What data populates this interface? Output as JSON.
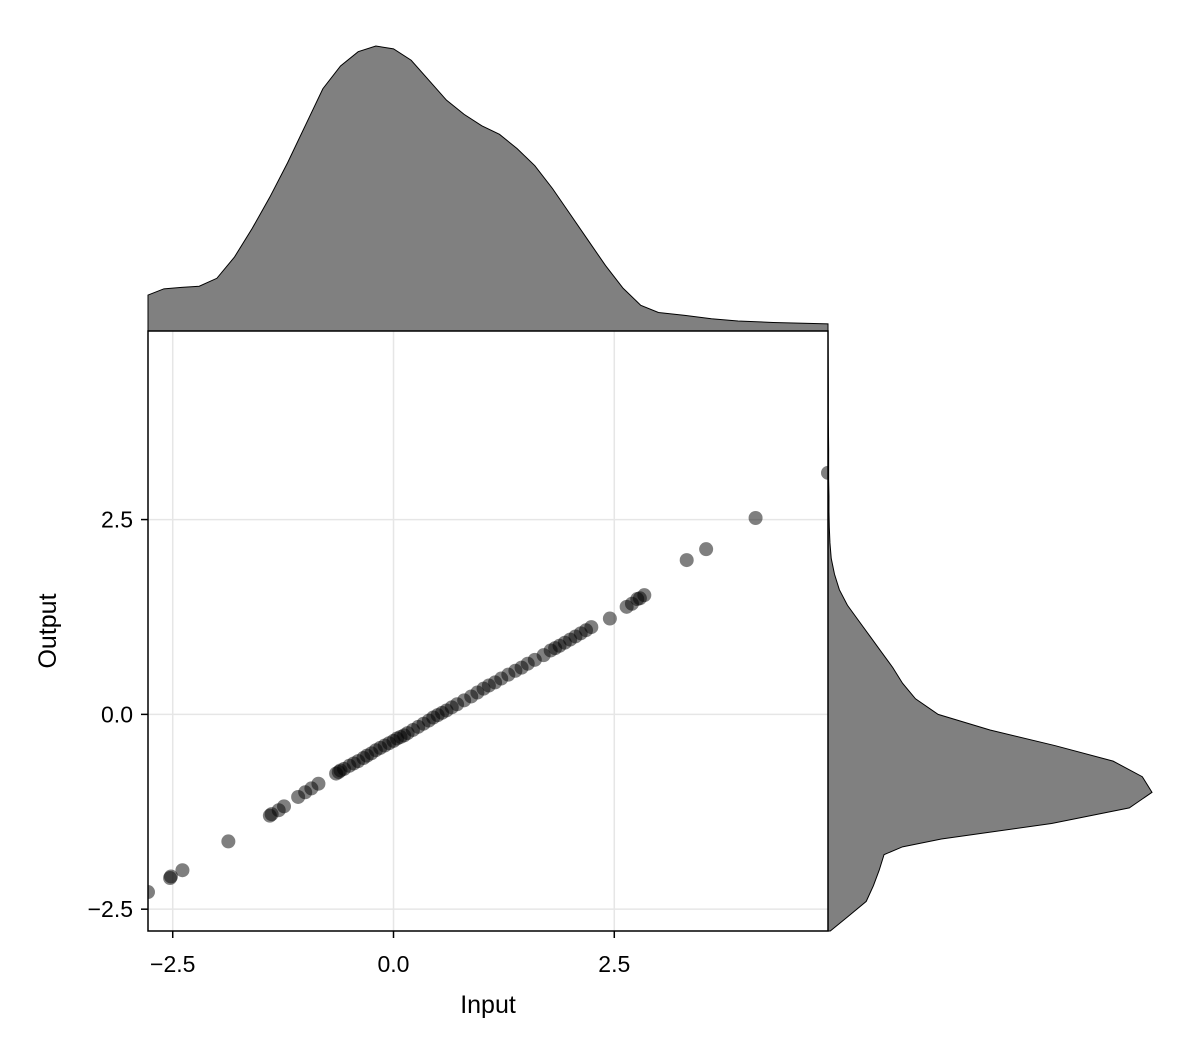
{
  "chart_data": {
    "type": "scatter",
    "title": "",
    "xlabel": "Input",
    "ylabel": "Output",
    "xlim": [
      -2.78,
      4.92
    ],
    "ylim": [
      -2.78,
      4.92
    ],
    "xticks": [
      -2.5,
      0.0,
      2.5
    ],
    "yticks": [
      -2.5,
      0.0,
      2.5
    ],
    "xtick_labels": [
      "−2.5",
      "0.0",
      "2.5"
    ],
    "ytick_labels": [
      "−2.5",
      "0.0",
      "2.5"
    ],
    "grid": true,
    "marginals": "density (top: Input, right: Output)",
    "colors": {
      "points": "#000000",
      "density_fill": "#808080",
      "frame": "#000000",
      "grid": "#e6e6e6"
    },
    "series": [
      {
        "points": [
          [
            -2.78,
            -2.28
          ],
          [
            -2.53,
            -2.1
          ],
          [
            -2.52,
            -2.08
          ],
          [
            -2.39,
            -2.0
          ],
          [
            -1.87,
            -1.63
          ],
          [
            -1.4,
            -1.3
          ],
          [
            -1.38,
            -1.28
          ],
          [
            -1.3,
            -1.23
          ],
          [
            -1.24,
            -1.18
          ],
          [
            -1.08,
            -1.06
          ],
          [
            -1.0,
            -1.0
          ],
          [
            -0.93,
            -0.95
          ],
          [
            -0.85,
            -0.89
          ],
          [
            -0.65,
            -0.76
          ],
          [
            -0.62,
            -0.74
          ],
          [
            -0.6,
            -0.72
          ],
          [
            -0.56,
            -0.7
          ],
          [
            -0.5,
            -0.66
          ],
          [
            -0.45,
            -0.63
          ],
          [
            -0.4,
            -0.6
          ],
          [
            -0.34,
            -0.56
          ],
          [
            -0.3,
            -0.53
          ],
          [
            -0.25,
            -0.5
          ],
          [
            -0.2,
            -0.46
          ],
          [
            -0.15,
            -0.43
          ],
          [
            -0.1,
            -0.4
          ],
          [
            -0.05,
            -0.37
          ],
          [
            0.0,
            -0.34
          ],
          [
            0.04,
            -0.31
          ],
          [
            0.08,
            -0.29
          ],
          [
            0.12,
            -0.27
          ],
          [
            0.16,
            -0.24
          ],
          [
            0.22,
            -0.2
          ],
          [
            0.28,
            -0.16
          ],
          [
            0.34,
            -0.12
          ],
          [
            0.4,
            -0.08
          ],
          [
            0.45,
            -0.04
          ],
          [
            0.5,
            -0.01
          ],
          [
            0.55,
            0.02
          ],
          [
            0.6,
            0.05
          ],
          [
            0.66,
            0.09
          ],
          [
            0.72,
            0.13
          ],
          [
            0.8,
            0.18
          ],
          [
            0.88,
            0.23
          ],
          [
            0.95,
            0.28
          ],
          [
            1.02,
            0.33
          ],
          [
            1.08,
            0.37
          ],
          [
            1.15,
            0.41
          ],
          [
            1.22,
            0.46
          ],
          [
            1.3,
            0.51
          ],
          [
            1.38,
            0.56
          ],
          [
            1.45,
            0.6
          ],
          [
            1.52,
            0.65
          ],
          [
            1.6,
            0.7
          ],
          [
            1.7,
            0.76
          ],
          [
            1.78,
            0.82
          ],
          [
            1.83,
            0.85
          ],
          [
            1.88,
            0.88
          ],
          [
            1.94,
            0.92
          ],
          [
            2.0,
            0.96
          ],
          [
            2.06,
            1.0
          ],
          [
            2.12,
            1.04
          ],
          [
            2.18,
            1.08
          ],
          [
            2.24,
            1.12
          ],
          [
            2.45,
            1.23
          ],
          [
            2.64,
            1.38
          ],
          [
            2.7,
            1.42
          ],
          [
            2.76,
            1.48
          ],
          [
            2.79,
            1.49
          ],
          [
            2.84,
            1.53
          ],
          [
            3.32,
            1.98
          ],
          [
            3.54,
            2.12
          ],
          [
            4.1,
            2.52
          ],
          [
            4.92,
            3.1
          ]
        ]
      }
    ],
    "marginal_top_density": [
      [
        -2.78,
        0.126
      ],
      [
        -2.6,
        0.148
      ],
      [
        -2.4,
        0.153
      ],
      [
        -2.2,
        0.157
      ],
      [
        -2.0,
        0.185
      ],
      [
        -1.8,
        0.26
      ],
      [
        -1.6,
        0.36
      ],
      [
        -1.4,
        0.47
      ],
      [
        -1.2,
        0.59
      ],
      [
        -1.0,
        0.72
      ],
      [
        -0.8,
        0.85
      ],
      [
        -0.6,
        0.93
      ],
      [
        -0.4,
        0.98
      ],
      [
        -0.2,
        1.0
      ],
      [
        0.0,
        0.99
      ],
      [
        0.2,
        0.95
      ],
      [
        0.4,
        0.88
      ],
      [
        0.6,
        0.81
      ],
      [
        0.8,
        0.76
      ],
      [
        1.0,
        0.72
      ],
      [
        1.2,
        0.69
      ],
      [
        1.4,
        0.64
      ],
      [
        1.6,
        0.58
      ],
      [
        1.8,
        0.5
      ],
      [
        2.0,
        0.41
      ],
      [
        2.2,
        0.32
      ],
      [
        2.4,
        0.23
      ],
      [
        2.6,
        0.15
      ],
      [
        2.8,
        0.09
      ],
      [
        3.0,
        0.065
      ],
      [
        3.3,
        0.055
      ],
      [
        3.6,
        0.043
      ],
      [
        3.9,
        0.035
      ],
      [
        4.3,
        0.03
      ],
      [
        4.92,
        0.025
      ]
    ],
    "marginal_right_density": [
      [
        -2.78,
        0.007
      ],
      [
        -2.6,
        0.06
      ],
      [
        -2.4,
        0.118
      ],
      [
        -2.2,
        0.14
      ],
      [
        -2.0,
        0.158
      ],
      [
        -1.8,
        0.173
      ],
      [
        -1.7,
        0.23
      ],
      [
        -1.6,
        0.35
      ],
      [
        -1.5,
        0.52
      ],
      [
        -1.4,
        0.69
      ],
      [
        -1.2,
        0.93
      ],
      [
        -1.0,
        1.0
      ],
      [
        -0.8,
        0.97
      ],
      [
        -0.6,
        0.88
      ],
      [
        -0.4,
        0.7
      ],
      [
        -0.2,
        0.5
      ],
      [
        0.0,
        0.34
      ],
      [
        0.2,
        0.27
      ],
      [
        0.4,
        0.23
      ],
      [
        0.6,
        0.2
      ],
      [
        0.8,
        0.165
      ],
      [
        1.0,
        0.13
      ],
      [
        1.2,
        0.095
      ],
      [
        1.4,
        0.06
      ],
      [
        1.6,
        0.035
      ],
      [
        1.8,
        0.02
      ],
      [
        2.0,
        0.01
      ],
      [
        2.2,
        0.006
      ],
      [
        2.4,
        0.004
      ],
      [
        2.6,
        0.003
      ],
      [
        2.8,
        0.003
      ],
      [
        3.0,
        0.002
      ],
      [
        3.4,
        0.002
      ],
      [
        3.8,
        0.001
      ],
      [
        4.2,
        0.001
      ],
      [
        4.92,
        0.0
      ]
    ]
  }
}
